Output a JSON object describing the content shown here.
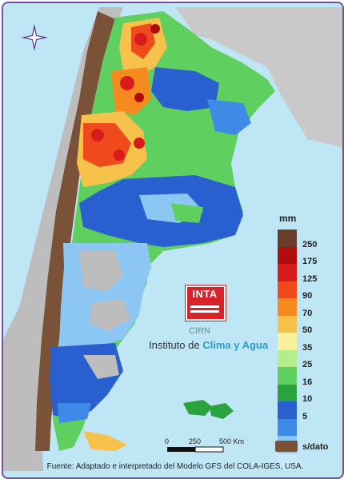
{
  "legend": {
    "unit": "mm",
    "colors": [
      "#6b3c2a",
      "#b00d0d",
      "#d81b1b",
      "#ee4a1c",
      "#f58a1e",
      "#f6c24c",
      "#faf0a0",
      "#b3ee8a",
      "#5fcf60",
      "#2aa23e",
      "#2a5fcf",
      "#3f8ae6",
      "#8cc6f2",
      "#c9e8fb"
    ],
    "labels": [
      "250",
      "175",
      "125",
      "90",
      "70",
      "50",
      "35",
      "25",
      "16",
      "10",
      "5"
    ],
    "no_data_label": "s/dato"
  },
  "logo": {
    "name": "INTA",
    "cirn": "CIRN",
    "institute_prefix": "Instituto de",
    "institute_highlight": "Clima y Agua"
  },
  "scale_bar": {
    "labels": [
      "0",
      "250",
      "500 Km"
    ]
  },
  "source": "Fuente: Adaptado e interpretado del Modelo GFS del COLA-IGES, USA."
}
